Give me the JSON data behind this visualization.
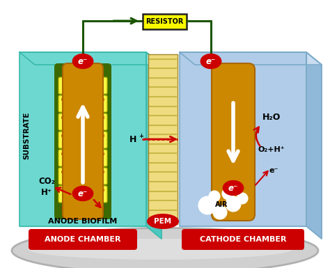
{
  "bg_color": "#ffffff",
  "anode_chamber_color": "#6dd8d0",
  "anode_chamber_edge": "#3abaaa",
  "anode_top_color": "#8ae0da",
  "anode_right_color": "#4ec8c0",
  "cathode_chamber_color": "#b0cce8",
  "cathode_chamber_edge": "#7aaac8",
  "cathode_top_color": "#c8ddf0",
  "cathode_right_color": "#90b8d8",
  "electrode_color": "#cc8800",
  "electrode_dark": "#aa6600",
  "electrode_border_color": "#3a6a00",
  "biofilm_cell_color": "#f8f840",
  "biofilm_dot_color": "#cc0000",
  "resistor_color": "#f8f800",
  "resistor_border": "#222222",
  "pem_color": "#f0dc80",
  "pem_stripe": "#c8b848",
  "pem_bg": "#e8cc60",
  "red_label_color": "#cc0000",
  "white_color": "#ffffff",
  "dark_green_wire": "#1a5500",
  "arrow_red": "#cc0000",
  "base_color": "#d0d0d0",
  "base_shadow": "#b0b0b0",
  "base_highlight": "#e8e8e8",
  "anode_label": "ANODE CHAMBER",
  "cathode_label": "CATHODE CHAMBER",
  "resistor_label": "RESISTOR",
  "pem_label": "PEM",
  "anode_biofilm_label": "ANODE BIOFILM",
  "substrate_label": "SUBSTRATE",
  "co2_label": "CO₂",
  "h_plus_label": "H⁺",
  "h2o_label": "H₂O",
  "o2_label": "O₂+H⁺",
  "h_label": "H",
  "air_label": "AIR",
  "e_minus": "e⁻"
}
